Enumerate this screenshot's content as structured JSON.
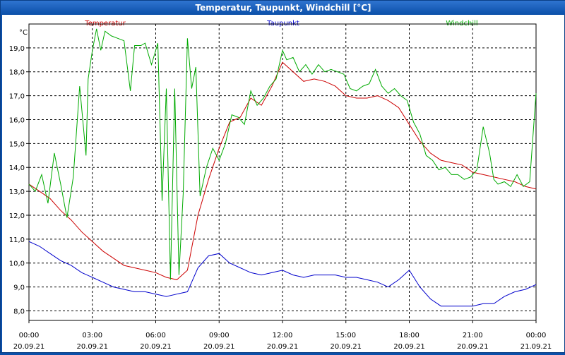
{
  "chart_data": {
    "type": "line",
    "title": "Temperatur, Taupunkt, Windchill [°C]",
    "ylabel": "°C",
    "ylim": [
      7.6,
      20.0
    ],
    "yticks": [
      8.0,
      9.0,
      10.0,
      11.0,
      12.0,
      13.0,
      14.0,
      15.0,
      16.0,
      17.0,
      18.0,
      19.0
    ],
    "ytick_labels": [
      "8,0",
      "9,0",
      "10,0",
      "11,0",
      "12,0",
      "13,0",
      "14,0",
      "15,0",
      "16,0",
      "17,0",
      "18,0",
      "19,0"
    ],
    "xlim": [
      0,
      24
    ],
    "xticks": [
      0,
      3,
      6,
      9,
      12,
      15,
      18,
      21,
      24
    ],
    "xtick_labels": [
      {
        "time": "00:00",
        "date": "20.09.21"
      },
      {
        "time": "03:00",
        "date": "20.09.21"
      },
      {
        "time": "06:00",
        "date": "20.09.21"
      },
      {
        "time": "09:00",
        "date": "20.09.21"
      },
      {
        "time": "12:00",
        "date": "20.09.21"
      },
      {
        "time": "15:00",
        "date": "20.09.21"
      },
      {
        "time": "18:00",
        "date": "20.09.21"
      },
      {
        "time": "21:00",
        "date": "20.09.21"
      },
      {
        "time": "00:00",
        "date": "21.09.21"
      }
    ],
    "grid": true,
    "legend_position": "top",
    "series": [
      {
        "name": "Temperatur",
        "color": "#cc0000",
        "x": [
          0,
          0.5,
          1,
          1.5,
          2,
          2.5,
          3,
          3.5,
          4,
          4.5,
          5,
          5.5,
          6,
          6.5,
          7,
          7.5,
          8,
          8.5,
          9,
          9.5,
          10,
          10.5,
          11,
          11.5,
          12,
          12.5,
          13,
          13.5,
          14,
          14.5,
          15,
          15.5,
          16,
          16.5,
          17,
          17.5,
          18,
          18.5,
          19,
          19.5,
          20,
          20.5,
          21,
          21.5,
          22,
          22.5,
          23,
          23.5,
          24
        ],
        "values": [
          13.3,
          13.0,
          12.7,
          12.2,
          11.8,
          11.3,
          10.9,
          10.5,
          10.2,
          9.9,
          9.8,
          9.7,
          9.6,
          9.4,
          9.3,
          9.7,
          12.0,
          13.5,
          14.8,
          15.9,
          16.1,
          16.9,
          16.6,
          17.4,
          18.4,
          18.0,
          17.6,
          17.7,
          17.6,
          17.4,
          17.0,
          16.9,
          16.9,
          17.0,
          16.8,
          16.5,
          15.8,
          15.1,
          14.6,
          14.3,
          14.2,
          14.1,
          13.8,
          13.7,
          13.6,
          13.5,
          13.4,
          13.2,
          13.1
        ]
      },
      {
        "name": "Taupunkt",
        "color": "#0000cc",
        "x": [
          0,
          0.5,
          1,
          1.5,
          2,
          2.5,
          3,
          3.5,
          4,
          4.5,
          5,
          5.5,
          6,
          6.5,
          7,
          7.5,
          8,
          8.5,
          9,
          9.5,
          10,
          10.5,
          11,
          11.5,
          12,
          12.5,
          13,
          13.5,
          14,
          14.5,
          15,
          15.5,
          16,
          16.5,
          17,
          17.5,
          18,
          18.5,
          19,
          19.5,
          20,
          20.5,
          21,
          21.5,
          22,
          22.5,
          23,
          23.5,
          24
        ],
        "values": [
          10.9,
          10.7,
          10.4,
          10.1,
          9.9,
          9.6,
          9.4,
          9.2,
          9.0,
          8.9,
          8.8,
          8.8,
          8.7,
          8.6,
          8.7,
          8.8,
          9.8,
          10.3,
          10.4,
          10.0,
          9.8,
          9.6,
          9.5,
          9.6,
          9.7,
          9.5,
          9.4,
          9.5,
          9.5,
          9.5,
          9.4,
          9.4,
          9.3,
          9.2,
          9.0,
          9.3,
          9.7,
          9.0,
          8.5,
          8.2,
          8.2,
          8.2,
          8.2,
          8.3,
          8.3,
          8.6,
          8.8,
          8.9,
          9.1
        ]
      },
      {
        "name": "Windchill",
        "color": "#00aa00",
        "x": [
          0,
          0.3,
          0.6,
          0.9,
          1.2,
          1.5,
          1.8,
          2.1,
          2.4,
          2.7,
          2.8,
          3.0,
          3.2,
          3.4,
          3.6,
          3.9,
          4.2,
          4.5,
          4.8,
          5.0,
          5.3,
          5.5,
          5.8,
          6.1,
          6.3,
          6.5,
          6.7,
          6.9,
          7.1,
          7.3,
          7.5,
          7.7,
          7.9,
          8.1,
          8.4,
          8.7,
          9.0,
          9.3,
          9.6,
          9.9,
          10.2,
          10.5,
          10.8,
          11.1,
          11.4,
          11.7,
          12.0,
          12.2,
          12.5,
          12.8,
          13.1,
          13.4,
          13.7,
          14.0,
          14.3,
          14.6,
          14.9,
          15.2,
          15.5,
          15.8,
          16.1,
          16.4,
          16.7,
          17.0,
          17.3,
          17.6,
          17.9,
          18.2,
          18.5,
          18.8,
          19.1,
          19.4,
          19.7,
          20.0,
          20.3,
          20.6,
          20.9,
          21.2,
          21.5,
          21.8,
          22.0,
          22.2,
          22.5,
          22.8,
          23.1,
          23.4,
          23.7,
          24.0
        ],
        "values": [
          13.3,
          13.0,
          13.7,
          12.5,
          14.6,
          13.3,
          11.9,
          13.6,
          17.4,
          14.5,
          17.7,
          18.9,
          19.8,
          18.9,
          19.7,
          19.5,
          19.4,
          19.3,
          17.2,
          19.1,
          19.1,
          19.2,
          18.3,
          19.2,
          12.6,
          17.3,
          9.3,
          17.3,
          9.5,
          12.9,
          19.4,
          17.3,
          18.2,
          12.8,
          14.0,
          14.8,
          14.3,
          15.0,
          16.2,
          16.1,
          15.8,
          17.2,
          16.6,
          16.9,
          17.4,
          17.7,
          18.9,
          18.5,
          18.6,
          18.0,
          18.3,
          17.9,
          18.3,
          18.0,
          18.1,
          18.0,
          17.9,
          17.3,
          17.2,
          17.4,
          17.5,
          18.1,
          17.4,
          17.1,
          17.3,
          17.0,
          16.8,
          15.9,
          15.4,
          14.5,
          14.3,
          13.9,
          14.0,
          13.7,
          13.7,
          13.5,
          13.6,
          13.9,
          15.7,
          14.6,
          13.5,
          13.3,
          13.4,
          13.2,
          13.7,
          13.2,
          13.4,
          17.1
        ]
      }
    ]
  }
}
